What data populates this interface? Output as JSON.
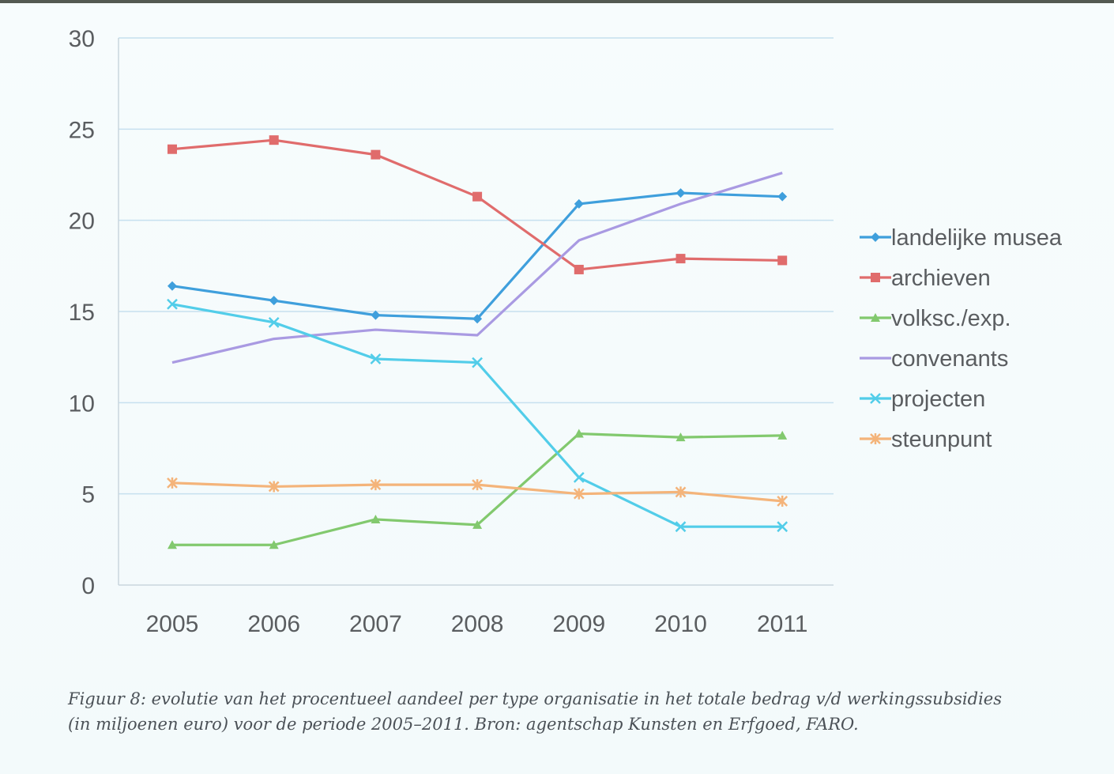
{
  "chart_data": {
    "type": "line",
    "categories": [
      "2005",
      "2006",
      "2007",
      "2008",
      "2009",
      "2010",
      "2011"
    ],
    "ylim": [
      0,
      30
    ],
    "yticks": [
      0,
      5,
      10,
      15,
      20,
      25,
      30
    ],
    "grid": "horizontal",
    "legend": "right",
    "series": [
      {
        "name": "landelijke musea",
        "color": "#3f9fdc",
        "marker": "diamond",
        "values": [
          16.4,
          15.6,
          14.8,
          14.6,
          20.9,
          21.5,
          21.3
        ]
      },
      {
        "name": "archieven",
        "color": "#e06c6c",
        "marker": "square",
        "values": [
          23.9,
          24.4,
          23.6,
          21.3,
          17.3,
          17.9,
          17.8
        ]
      },
      {
        "name": "volksc./exp.",
        "color": "#82c96e",
        "marker": "triangle",
        "values": [
          2.2,
          2.2,
          3.6,
          3.3,
          8.3,
          8.1,
          8.2
        ]
      },
      {
        "name": "convenants",
        "color": "#a99ae2",
        "marker": "none",
        "values": [
          12.2,
          13.5,
          14.0,
          13.7,
          18.9,
          20.9,
          22.6
        ]
      },
      {
        "name": "projecten",
        "color": "#52cde9",
        "marker": "cross",
        "values": [
          15.4,
          14.4,
          12.4,
          12.2,
          5.9,
          3.2,
          3.2
        ]
      },
      {
        "name": "steunpunt",
        "color": "#f4b47a",
        "marker": "star",
        "values": [
          5.6,
          5.4,
          5.5,
          5.5,
          5.0,
          5.1,
          4.6
        ]
      }
    ]
  },
  "caption": {
    "line1": "Figuur 8: evolutie van het procentueel aandeel per type organisatie in het totale bedrag v/d werkingssubsidies",
    "line2": "(in miljoenen euro) voor de periode 2005–2011. Bron: agentschap Kunsten en Erfgoed, FARO."
  }
}
